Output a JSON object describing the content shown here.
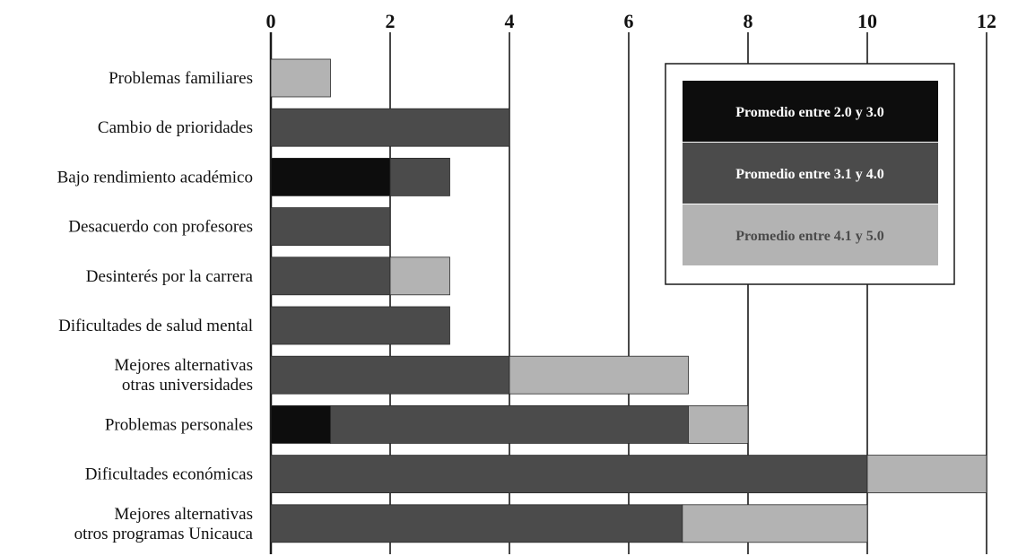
{
  "chart_data": {
    "type": "bar",
    "orientation": "horizontal",
    "stacked": true,
    "xlim": [
      0,
      12
    ],
    "xticks": [
      "0",
      "2",
      "4",
      "6",
      "8",
      "10",
      "12"
    ],
    "x_axis_position": "top",
    "grid": true,
    "legend_position": "top-right",
    "categories": [
      [
        "Problemas familiares"
      ],
      [
        "Cambio de prioridades"
      ],
      [
        "Bajo rendimiento académico"
      ],
      [
        "Desacuerdo con profesores"
      ],
      [
        "Desinterés por la carrera"
      ],
      [
        "Dificultades de salud mental"
      ],
      [
        "Mejores alternativas",
        "otras universidades"
      ],
      [
        "Problemas personales"
      ],
      [
        "Dificultades económicas"
      ],
      [
        "Mejores alternativas",
        "otros programas Unicauca"
      ]
    ],
    "series": [
      {
        "name": "Promedio entre 2.0 y 3.0",
        "color": "#0d0d0d",
        "text_color": "#ffffff",
        "values": [
          0,
          0,
          2,
          0,
          0,
          0,
          0,
          1,
          0,
          0
        ]
      },
      {
        "name": "Promedio entre 3.1 y 4.0",
        "color": "#4b4b4b",
        "text_color": "#ffffff",
        "values": [
          0,
          4,
          1,
          2,
          2,
          3,
          4,
          6,
          10,
          6.9
        ]
      },
      {
        "name": "Promedio entre 4.1 y 5.0",
        "color": "#b3b3b3",
        "text_color": "#4a4a4a",
        "values": [
          1,
          0,
          0,
          0,
          1,
          0,
          3,
          1,
          2,
          3.1
        ]
      }
    ]
  }
}
